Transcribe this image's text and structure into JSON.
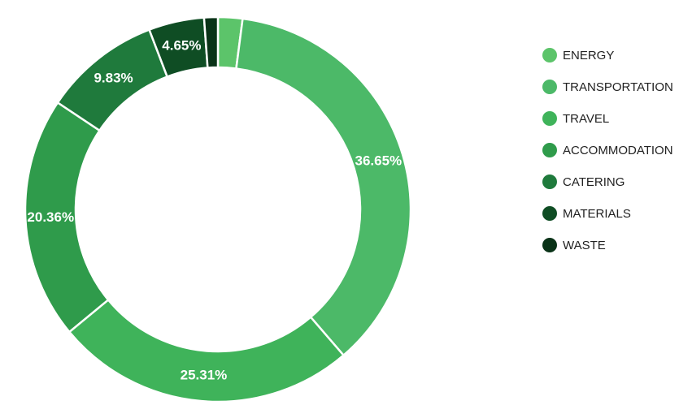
{
  "chart_data": {
    "type": "donut",
    "categories": [
      "ENERGY",
      "TRANSPORTATION",
      "TRAVEL",
      "ACCOMMODATION",
      "CATERING",
      "MATERIALS",
      "WASTE"
    ],
    "values": [
      2.05,
      36.65,
      25.31,
      20.36,
      9.83,
      4.65,
      1.15
    ],
    "value_labels": [
      null,
      "36.65%",
      "25.31%",
      "20.36%",
      "9.83%",
      "4.65%",
      null
    ],
    "colors": [
      "#5cc46a",
      "#4cb968",
      "#3fb35a",
      "#2f9b4b",
      "#1f7a3c",
      "#0f4d24",
      "#0a3318"
    ],
    "legend": "right"
  }
}
